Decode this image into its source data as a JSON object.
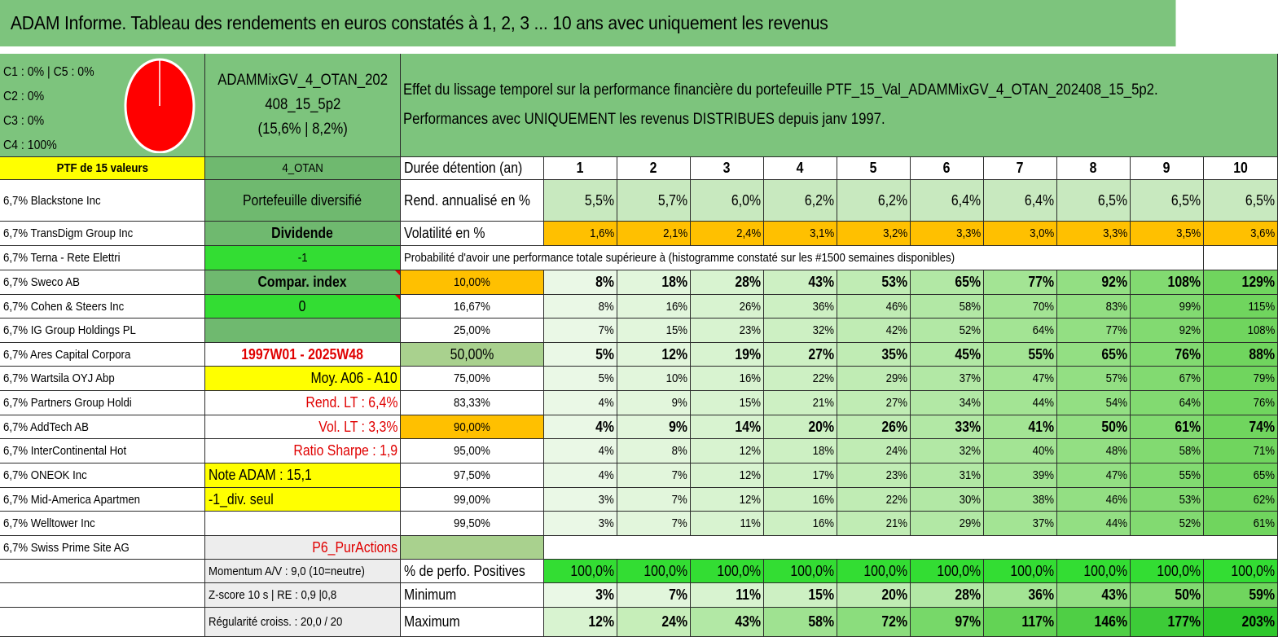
{
  "title": "ADAM Informe. Tableau des rendements en euros constatés à 1, 2, 3 ... 10 ans avec uniquement les revenus",
  "legend": [
    "C1 : 0% | C5 : 0%",
    "C2 : 0%",
    "C3 : 0%",
    "C4 : 100%"
  ],
  "pie": {
    "color": "#ff0000",
    "c4_share": 100
  },
  "portfolio": {
    "name_line1": "ADAMMixGV_4_OTAN_202",
    "name_line2": "408_15_5p2",
    "stats": "(15,6% | 8,2%)"
  },
  "description": {
    "line1": "Effet du lissage temporel sur la performance financière du portefeuille PTF_15_Val_ADAMMixGV_4_OTAN_202408_15_5p2.",
    "line2": "Performances avec UNIQUEMENT les revenus DISTRIBUES depuis janv 1997."
  },
  "header_row": {
    "ptf": "PTF de 15 valeurs",
    "code": "4_OTAN",
    "duration_label": "Durée détention (an)",
    "years": [
      "1",
      "2",
      "3",
      "4",
      "5",
      "6",
      "7",
      "8",
      "9",
      "10"
    ]
  },
  "holdings": [
    "6,7% Blackstone Inc",
    "6,7% TransDigm Group Inc",
    "6,7% Terna - Rete Elettri",
    "6,7% Sweco AB",
    "6,7% Cohen & Steers Inc",
    "6,7% IG Group Holdings PL",
    "6,7% Ares Capital Corpora",
    "6,7% Wartsila OYJ Abp",
    "6,7% Partners Group Holdi",
    "6,7% AddTech AB",
    "6,7% InterContinental Hot",
    "6,7% ONEOK Inc",
    "6,7% Mid-America Apartmen",
    "6,7% Welltower Inc",
    "6,7% Swiss Prime Site AG"
  ],
  "info_col": [
    "Portefeuille diversifié",
    "Dividende",
    "-1",
    "Compar. index",
    "0",
    "",
    "1997W01 - 2025W48",
    "Moy. A06 - A10",
    "Rend. LT : 6,4%",
    "Vol. LT : 3,3%",
    "Ratio Sharpe : 1,9",
    "Note ADAM : 15,1",
    "-1_div. seul",
    "",
    "P6_PurActions"
  ],
  "rend": {
    "label": "Rend. annualisé en %",
    "values": [
      "5,5%",
      "5,7%",
      "6,0%",
      "6,2%",
      "6,2%",
      "6,4%",
      "6,4%",
      "6,5%",
      "6,5%",
      "6,5%"
    ]
  },
  "vol": {
    "label": "Volatilité en %",
    "values": [
      "1,6%",
      "2,1%",
      "2,4%",
      "3,1%",
      "3,2%",
      "3,3%",
      "3,0%",
      "3,3%",
      "3,5%",
      "3,6%"
    ]
  },
  "prob_header": "Probabilité d'avoir une performance totale supérieure à (histogramme constaté sur les #1500 semaines disponibles)",
  "prob_rows": [
    {
      "pct": "10,00%",
      "values": [
        "8%",
        "18%",
        "28%",
        "43%",
        "53%",
        "65%",
        "77%",
        "92%",
        "108%",
        "129%"
      ]
    },
    {
      "pct": "16,67%",
      "values": [
        "8%",
        "16%",
        "26%",
        "36%",
        "46%",
        "58%",
        "70%",
        "83%",
        "99%",
        "115%"
      ]
    },
    {
      "pct": "25,00%",
      "values": [
        "7%",
        "15%",
        "23%",
        "32%",
        "42%",
        "52%",
        "64%",
        "77%",
        "92%",
        "108%"
      ]
    },
    {
      "pct": "50,00%",
      "values": [
        "5%",
        "12%",
        "19%",
        "27%",
        "35%",
        "45%",
        "55%",
        "65%",
        "76%",
        "88%"
      ]
    },
    {
      "pct": "75,00%",
      "values": [
        "5%",
        "10%",
        "16%",
        "22%",
        "29%",
        "37%",
        "47%",
        "57%",
        "67%",
        "79%"
      ]
    },
    {
      "pct": "83,33%",
      "values": [
        "4%",
        "9%",
        "15%",
        "21%",
        "27%",
        "34%",
        "44%",
        "54%",
        "64%",
        "76%"
      ]
    },
    {
      "pct": "90,00%",
      "values": [
        "4%",
        "9%",
        "14%",
        "20%",
        "26%",
        "33%",
        "41%",
        "50%",
        "61%",
        "74%"
      ]
    },
    {
      "pct": "95,00%",
      "values": [
        "4%",
        "8%",
        "12%",
        "18%",
        "24%",
        "32%",
        "40%",
        "48%",
        "58%",
        "71%"
      ]
    },
    {
      "pct": "97,50%",
      "values": [
        "4%",
        "7%",
        "12%",
        "17%",
        "23%",
        "31%",
        "39%",
        "47%",
        "55%",
        "65%"
      ]
    },
    {
      "pct": "99,00%",
      "values": [
        "3%",
        "7%",
        "12%",
        "16%",
        "22%",
        "30%",
        "38%",
        "46%",
        "53%",
        "62%"
      ]
    },
    {
      "pct": "99,50%",
      "values": [
        "3%",
        "7%",
        "11%",
        "16%",
        "21%",
        "29%",
        "37%",
        "44%",
        "52%",
        "61%"
      ]
    }
  ],
  "bottom": {
    "momentum": "Momentum A/V : 9,0 (10=neutre)",
    "zscore": "Z-score 10 s | RE : 0,9 |0,8",
    "regularite": "Régularité croiss. : 20,0 / 20",
    "positives": {
      "label": "% de perfo. Positives",
      "values": [
        "100,0%",
        "100,0%",
        "100,0%",
        "100,0%",
        "100,0%",
        "100,0%",
        "100,0%",
        "100,0%",
        "100,0%",
        "100,0%"
      ]
    },
    "minimum": {
      "label": "Minimum",
      "values": [
        "3%",
        "7%",
        "11%",
        "15%",
        "20%",
        "28%",
        "36%",
        "43%",
        "50%",
        "59%"
      ]
    },
    "maximum": {
      "label": "Maximum",
      "values": [
        "12%",
        "24%",
        "43%",
        "58%",
        "72%",
        "97%",
        "117%",
        "146%",
        "177%",
        "203%"
      ]
    }
  }
}
